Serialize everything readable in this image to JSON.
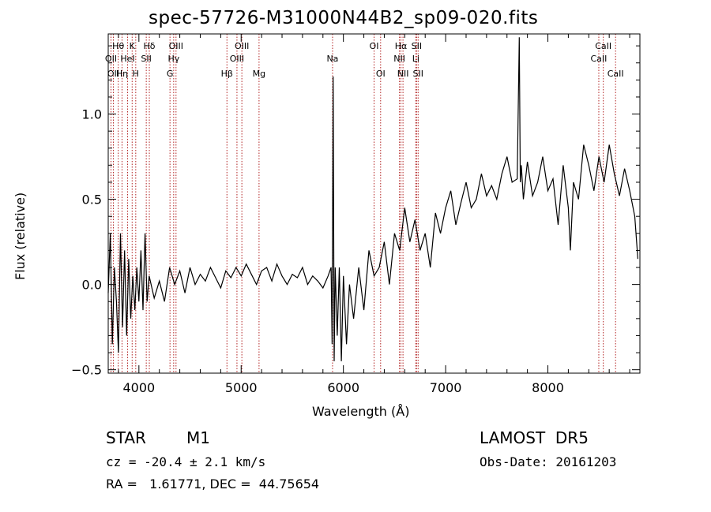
{
  "title": "spec-57726-M31000N44B2_sp09-020.fits",
  "info": {
    "class": "STAR",
    "subclass": "M1",
    "survey": "LAMOST  DR5",
    "cz": "cz = -20.4 ± 2.1 km/s",
    "obs_date": "Obs-Date: 20161203",
    "radec": "RA =   1.61771, DEC =  44.75654"
  },
  "chart_data": {
    "type": "line",
    "xlabel": "Wavelength (Å)",
    "ylabel": "Flux (relative)",
    "xlim": [
      3700,
      8900
    ],
    "ylim": [
      -0.52,
      1.47
    ],
    "x_ticks": [
      4000,
      5000,
      6000,
      7000,
      8000
    ],
    "x_tick_labels": [
      "4000",
      "5000",
      "6000",
      "7000",
      "8000"
    ],
    "y_ticks": [
      -0.5,
      0.0,
      0.5,
      1.0
    ],
    "y_tick_labels": [
      "−0.5",
      "0.0",
      "0.5",
      "1.0"
    ],
    "series_color": "#000000",
    "line_marker_color": "#b22222",
    "spectrum": {
      "x": [
        3700,
        3720,
        3740,
        3760,
        3780,
        3800,
        3820,
        3840,
        3860,
        3880,
        3900,
        3920,
        3940,
        3960,
        3980,
        4000,
        4020,
        4040,
        4060,
        4080,
        4100,
        4150,
        4200,
        4250,
        4300,
        4350,
        4400,
        4450,
        4500,
        4550,
        4600,
        4650,
        4700,
        4750,
        4800,
        4850,
        4900,
        4950,
        5000,
        5050,
        5100,
        5150,
        5200,
        5250,
        5300,
        5350,
        5400,
        5450,
        5500,
        5550,
        5600,
        5650,
        5700,
        5750,
        5800,
        5850,
        5880,
        5890,
        5900,
        5910,
        5920,
        5940,
        5960,
        5980,
        6000,
        6030,
        6060,
        6100,
        6150,
        6200,
        6250,
        6300,
        6350,
        6400,
        6450,
        6500,
        6550,
        6600,
        6650,
        6700,
        6750,
        6800,
        6850,
        6900,
        6950,
        7000,
        7050,
        7100,
        7150,
        7200,
        7250,
        7300,
        7350,
        7400,
        7450,
        7500,
        7550,
        7600,
        7650,
        7700,
        7720,
        7730,
        7740,
        7760,
        7800,
        7850,
        7900,
        7950,
        8000,
        8050,
        8100,
        8150,
        8200,
        8220,
        8250,
        8300,
        8350,
        8400,
        8450,
        8500,
        8550,
        8600,
        8650,
        8700,
        8750,
        8800,
        8850,
        8880
      ],
      "y": [
        -0.05,
        0.3,
        -0.35,
        0.1,
        -0.1,
        -0.4,
        0.3,
        -0.25,
        0.2,
        -0.3,
        0.15,
        -0.2,
        0.05,
        -0.15,
        0.1,
        -0.1,
        0.2,
        -0.15,
        0.3,
        -0.1,
        0.05,
        -0.08,
        0.02,
        -0.1,
        0.1,
        0.0,
        0.08,
        -0.05,
        0.1,
        0.0,
        0.06,
        0.02,
        0.1,
        0.04,
        -0.02,
        0.08,
        0.04,
        0.1,
        0.05,
        0.12,
        0.06,
        0.0,
        0.08,
        0.1,
        0.02,
        0.12,
        0.05,
        0.0,
        0.06,
        0.04,
        0.1,
        0.0,
        0.05,
        0.02,
        -0.02,
        0.05,
        0.1,
        -0.35,
        1.22,
        -0.45,
        0.1,
        -0.3,
        0.1,
        -0.45,
        0.05,
        -0.35,
        0.0,
        -0.2,
        0.1,
        -0.15,
        0.2,
        0.05,
        0.1,
        0.25,
        0.0,
        0.3,
        0.2,
        0.45,
        0.25,
        0.38,
        0.2,
        0.3,
        0.1,
        0.42,
        0.3,
        0.45,
        0.55,
        0.35,
        0.48,
        0.6,
        0.45,
        0.5,
        0.65,
        0.52,
        0.58,
        0.5,
        0.65,
        0.75,
        0.6,
        0.62,
        1.45,
        0.6,
        0.7,
        0.5,
        0.72,
        0.52,
        0.6,
        0.75,
        0.55,
        0.62,
        0.35,
        0.7,
        0.45,
        0.2,
        0.6,
        0.5,
        0.82,
        0.7,
        0.55,
        0.75,
        0.6,
        0.82,
        0.65,
        0.52,
        0.68,
        0.55,
        0.4,
        0.15
      ]
    },
    "lines": [
      {
        "wl": 3727,
        "label": "OII",
        "row": 2
      },
      {
        "wl": 3750,
        "label": "OII",
        "row": 3
      },
      {
        "wl": 3798,
        "label": "Hθ",
        "row": 1
      },
      {
        "wl": 3835,
        "label": "Hη",
        "row": 3
      },
      {
        "wl": 3889,
        "label": "HeI",
        "row": 2
      },
      {
        "wl": 3934,
        "label": "K",
        "row": 1
      },
      {
        "wl": 3969,
        "label": "H",
        "row": 3
      },
      {
        "wl": 4072,
        "label": "SII",
        "row": 2
      },
      {
        "wl": 4102,
        "label": "Hδ",
        "row": 1
      },
      {
        "wl": 4304,
        "label": "G",
        "row": 3
      },
      {
        "wl": 4340,
        "label": "Hγ",
        "row": 2
      },
      {
        "wl": 4363,
        "label": "OIII",
        "row": 1
      },
      {
        "wl": 4861,
        "label": "Hβ",
        "row": 3
      },
      {
        "wl": 4959,
        "label": "OIII",
        "row": 2
      },
      {
        "wl": 5007,
        "label": "OIII",
        "row": 1
      },
      {
        "wl": 5175,
        "label": "Mg",
        "row": 3
      },
      {
        "wl": 5894,
        "label": "Na",
        "row": 2
      },
      {
        "wl": 6300,
        "label": "OI",
        "row": 1
      },
      {
        "wl": 6364,
        "label": "OI",
        "row": 3
      },
      {
        "wl": 6548,
        "label": "NII",
        "row": 2
      },
      {
        "wl": 6563,
        "label": "Hα",
        "row": 1
      },
      {
        "wl": 6583,
        "label": "NII",
        "row": 3
      },
      {
        "wl": 6708,
        "label": "Li",
        "row": 2
      },
      {
        "wl": 6716,
        "label": "SII",
        "row": 1
      },
      {
        "wl": 6731,
        "label": "SII",
        "row": 3
      },
      {
        "wl": 8498,
        "label": "CaII",
        "row": 2
      },
      {
        "wl": 8542,
        "label": "CaII",
        "row": 1
      },
      {
        "wl": 8662,
        "label": "CaII",
        "row": 3
      }
    ]
  }
}
